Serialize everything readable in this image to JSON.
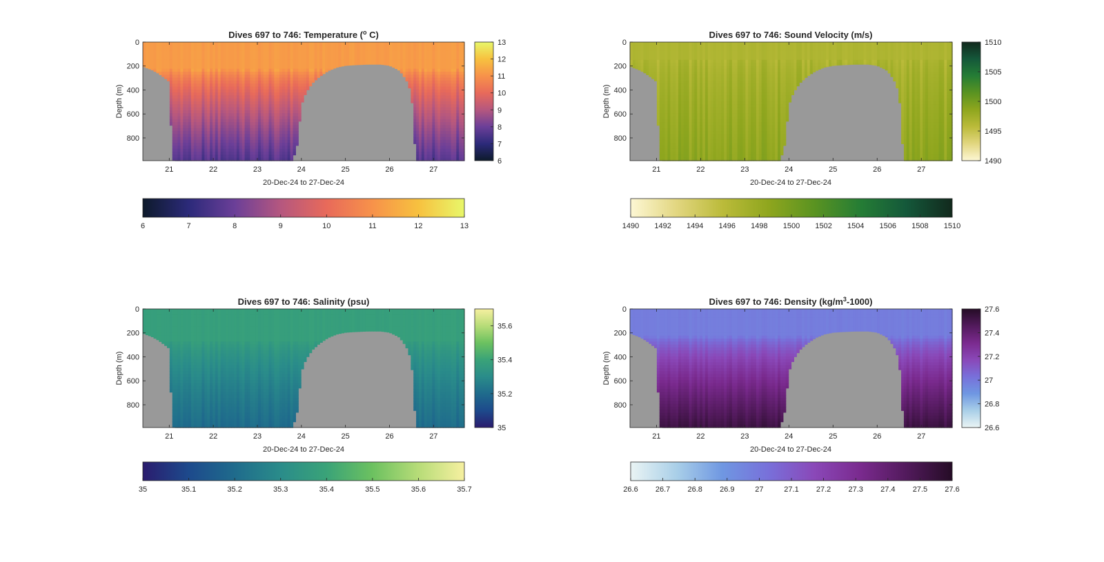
{
  "chart_data": [
    {
      "type": "heatmap",
      "title": "Dives 697 to 746: Temperature (o C)",
      "title_main": "Dives 697 to 746: Temperature (",
      "title_sup": "o",
      "title_tail": " C)",
      "ylabel": "Depth (m)",
      "xlabel": "20-Dec-24 to 27-Dec-24",
      "xlim": [
        20.4,
        27.7
      ],
      "ylim": [
        0,
        990
      ],
      "y_reversed": true,
      "xticks": [
        "21",
        "22",
        "23",
        "24",
        "25",
        "26",
        "27"
      ],
      "xtick_values": [
        21,
        22,
        23,
        24,
        25,
        26,
        27
      ],
      "yticks": [
        "0",
        "200",
        "400",
        "600",
        "800"
      ],
      "ytick_values": [
        0,
        200,
        400,
        600,
        800
      ],
      "colorbar_right_ticks": [
        "6",
        "7",
        "8",
        "9",
        "10",
        "11",
        "12",
        "13"
      ],
      "colorbar_right_values": [
        6,
        7,
        8,
        9,
        10,
        11,
        12,
        13
      ],
      "colorbar_bottom_ticks": [
        "6",
        "7",
        "8",
        "9",
        "10",
        "11",
        "12",
        "13"
      ],
      "colorbar_bottom_values": [
        6,
        7,
        8,
        9,
        10,
        11,
        12,
        13
      ],
      "clim": [
        6,
        13
      ],
      "colormap": [
        "#0d1a2b",
        "#2c2a7a",
        "#6b3f98",
        "#b5577f",
        "#e86a5a",
        "#f7924a",
        "#f7c13f",
        "#e8f76a"
      ],
      "surface_value": 11.2,
      "deep_value": 7.6,
      "mix_depth": 230,
      "stripe_amp": 0.35,
      "no_data_color": "#999999"
    },
    {
      "type": "heatmap",
      "title": "Dives 697 to 746: Sound Velocity (m/s)",
      "title_main": "Dives 697 to 746: Sound Velocity (m/s)",
      "title_sup": "",
      "title_tail": "",
      "ylabel": "Depth (m)",
      "xlabel": "20-Dec-24 to 27-Dec-24",
      "xlim": [
        20.4,
        27.7
      ],
      "ylim": [
        0,
        990
      ],
      "y_reversed": true,
      "xticks": [
        "21",
        "22",
        "23",
        "24",
        "25",
        "26",
        "27"
      ],
      "xtick_values": [
        21,
        22,
        23,
        24,
        25,
        26,
        27
      ],
      "yticks": [
        "0",
        "200",
        "400",
        "600",
        "800"
      ],
      "ytick_values": [
        0,
        200,
        400,
        600,
        800
      ],
      "colorbar_right_ticks": [
        "1490",
        "1495",
        "1500",
        "1505",
        "1510"
      ],
      "colorbar_right_values": [
        1490,
        1495,
        1500,
        1505,
        1510
      ],
      "colorbar_bottom_ticks": [
        "1490",
        "1492",
        "1494",
        "1496",
        "1498",
        "1500",
        "1502",
        "1504",
        "1506",
        "1508",
        "1510"
      ],
      "colorbar_bottom_values": [
        1490,
        1492,
        1494,
        1496,
        1498,
        1500,
        1502,
        1504,
        1506,
        1508,
        1510
      ],
      "clim": [
        1490,
        1510
      ],
      "colormap": [
        "#fdf7d4",
        "#e2d680",
        "#bbbb3a",
        "#8fa61e",
        "#5a9321",
        "#257d35",
        "#14583a",
        "#12291d"
      ],
      "surface_value": 1496.5,
      "deep_value": 1498.5,
      "mix_depth": 150,
      "stripe_amp": 0.9,
      "no_data_color": "#999999"
    },
    {
      "type": "heatmap",
      "title": "Dives 697 to 746: Salinity (psu)",
      "title_main": "Dives 697 to 746: Salinity (psu)",
      "title_sup": "",
      "title_tail": "",
      "ylabel": "Depth (m)",
      "xlabel": "20-Dec-24 to 27-Dec-24",
      "xlim": [
        20.4,
        27.7
      ],
      "ylim": [
        0,
        990
      ],
      "y_reversed": true,
      "xticks": [
        "21",
        "22",
        "23",
        "24",
        "25",
        "26",
        "27"
      ],
      "xtick_values": [
        21,
        22,
        23,
        24,
        25,
        26,
        27
      ],
      "yticks": [
        "0",
        "200",
        "400",
        "600",
        "800"
      ],
      "ytick_values": [
        0,
        200,
        400,
        600,
        800
      ],
      "colorbar_right_ticks": [
        "35",
        "35.2",
        "35.4",
        "35.6"
      ],
      "colorbar_right_values": [
        35,
        35.2,
        35.4,
        35.6
      ],
      "colorbar_bottom_ticks": [
        "35",
        "35.1",
        "35.2",
        "35.3",
        "35.4",
        "35.5",
        "35.6",
        "35.7"
      ],
      "colorbar_bottom_values": [
        35,
        35.1,
        35.2,
        35.3,
        35.4,
        35.5,
        35.6,
        35.7
      ],
      "clim": [
        35,
        35.7
      ],
      "colormap": [
        "#2a1c6e",
        "#1d4a8c",
        "#1f6b8c",
        "#2a8c8a",
        "#3aa378",
        "#6cc160",
        "#b7dc78",
        "#f6f0a0"
      ],
      "surface_value": 35.38,
      "deep_value": 35.2,
      "mix_depth": 260,
      "stripe_amp": 0.02,
      "no_data_color": "#999999"
    },
    {
      "type": "heatmap",
      "title": "Dives 697 to 746: Density (kg/m3-1000)",
      "title_main": "Dives 697 to 746: Density (kg/m",
      "title_sup": "3",
      "title_tail": "-1000)",
      "ylabel": "Depth (m)",
      "xlabel": "20-Dec-24 to 27-Dec-24",
      "xlim": [
        20.4,
        27.7
      ],
      "ylim": [
        0,
        990
      ],
      "y_reversed": true,
      "xticks": [
        "21",
        "22",
        "23",
        "24",
        "25",
        "26",
        "27"
      ],
      "xtick_values": [
        21,
        22,
        23,
        24,
        25,
        26,
        27
      ],
      "yticks": [
        "0",
        "200",
        "400",
        "600",
        "800"
      ],
      "ytick_values": [
        0,
        200,
        400,
        600,
        800
      ],
      "colorbar_right_ticks": [
        "26.6",
        "26.8",
        "27",
        "27.2",
        "27.4",
        "27.6"
      ],
      "colorbar_right_values": [
        26.6,
        26.8,
        27,
        27.2,
        27.4,
        27.6
      ],
      "colorbar_bottom_ticks": [
        "26.6",
        "26.7",
        "26.8",
        "26.9",
        "27",
        "27.1",
        "27.2",
        "27.3",
        "27.4",
        "27.5",
        "27.6"
      ],
      "colorbar_bottom_values": [
        26.6,
        26.7,
        26.8,
        26.9,
        27,
        27.1,
        27.2,
        27.3,
        27.4,
        27.5,
        27.6
      ],
      "clim": [
        26.6,
        27.6
      ],
      "colormap": [
        "#eaf4f4",
        "#a9cfe8",
        "#6f97e2",
        "#7870da",
        "#8a48b8",
        "#7a2a8e",
        "#521a5c",
        "#250c26"
      ],
      "surface_value": 26.98,
      "deep_value": 27.52,
      "mix_depth": 230,
      "stripe_amp": 0.03,
      "no_data_color": "#999999"
    }
  ],
  "dive_bottom_depth": {
    "day": [
      20.4,
      20.45,
      20.6,
      20.75,
      20.9,
      21.0,
      21.05,
      21.1,
      21.3,
      22.0,
      23.0,
      23.8,
      23.9,
      24.0,
      24.1,
      24.25,
      24.4,
      24.6,
      24.8,
      25.0,
      25.2,
      25.5,
      25.8,
      26.0,
      26.2,
      26.3,
      26.4,
      26.5,
      26.6,
      27.0,
      27.4,
      27.7
    ],
    "depth": [
      200,
      210,
      230,
      260,
      300,
      330,
      800,
      990,
      990,
      990,
      990,
      990,
      860,
      520,
      420,
      340,
      290,
      240,
      210,
      195,
      190,
      185,
      185,
      195,
      230,
      270,
      330,
      430,
      990,
      990,
      990,
      990
    ]
  }
}
